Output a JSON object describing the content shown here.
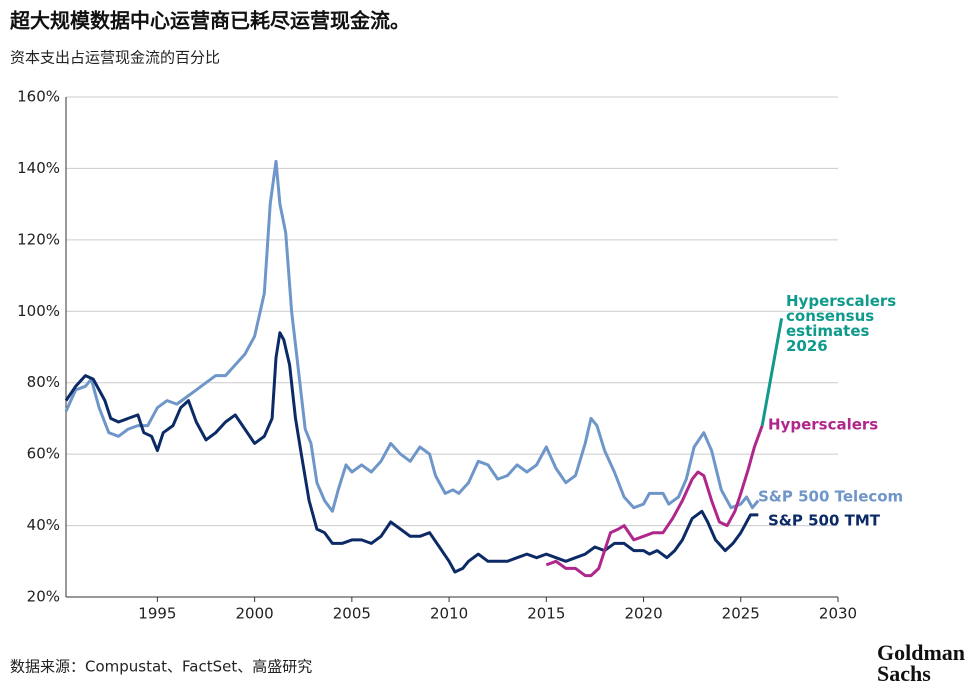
{
  "chart_data": {
    "type": "line",
    "title": "超大规模数据中心运营商已耗尽运营现金流。",
    "subtitle": "资本支出占运营现金流的百分比",
    "source": "数据来源：Compustat、FactSet、高盛研究",
    "logo": [
      "Goldman",
      "Sachs"
    ],
    "xlim": [
      1990.3,
      2030
    ],
    "xticks": [
      1995,
      2000,
      2005,
      2010,
      2015,
      2020,
      2025,
      2030
    ],
    "ylim": [
      20,
      160
    ],
    "yticks": [
      {
        "value": 20,
        "label": "20%"
      },
      {
        "value": 40,
        "label": "40%"
      },
      {
        "value": 60,
        "label": "60%"
      },
      {
        "value": 80,
        "label": "80%"
      },
      {
        "value": 100,
        "label": "100%"
      },
      {
        "value": 120,
        "label": "120%"
      },
      {
        "value": 140,
        "label": "140%"
      },
      {
        "value": 160,
        "label": "160%"
      }
    ],
    "grid": true,
    "series": [
      {
        "name": "S&P 500 Telecom",
        "color": "#6f96c8",
        "x": [
          1990.3,
          1990.8,
          1991.3,
          1991.6,
          1992,
          1992.5,
          1993,
          1993.5,
          1994,
          1994.5,
          1995,
          1995.5,
          1996,
          1996.5,
          1997,
          1997.5,
          1998,
          1998.5,
          1999,
          1999.5,
          2000,
          2000.5,
          2000.8,
          2001.1,
          2001.3,
          2001.6,
          2001.9,
          2002.2,
          2002.6,
          2002.9,
          2003.2,
          2003.6,
          2004,
          2004.3,
          2004.7,
          2005,
          2005.5,
          2006,
          2006.5,
          2007,
          2007.5,
          2008,
          2008.5,
          2009,
          2009.3,
          2009.8,
          2010.2,
          2010.5,
          2011,
          2011.5,
          2012,
          2012.5,
          2013,
          2013.5,
          2014,
          2014.5,
          2015,
          2015.5,
          2016,
          2016.5,
          2017,
          2017.3,
          2017.6,
          2018,
          2018.5,
          2019,
          2019.5,
          2020,
          2020.3,
          2021,
          2021.3,
          2021.8,
          2022.2,
          2022.6,
          2023.1,
          2023.5,
          2024,
          2024.5,
          2025,
          2025.3,
          2025.6,
          2025.9
        ],
        "values": [
          72,
          78,
          79,
          81,
          73,
          66,
          65,
          67,
          68,
          68,
          73,
          75,
          74,
          76,
          78,
          80,
          82,
          82,
          85,
          88,
          93,
          105,
          130,
          142,
          130,
          122,
          100,
          86,
          67,
          63,
          52,
          47,
          44,
          50,
          57,
          55,
          57,
          55,
          58,
          63,
          60,
          58,
          62,
          60,
          54,
          49,
          50,
          49,
          52,
          58,
          57,
          53,
          54,
          57,
          55,
          57,
          62,
          56,
          52,
          54,
          63,
          70,
          68,
          61,
          55,
          48,
          45,
          46,
          49,
          49,
          46,
          48,
          53,
          62,
          66,
          61,
          50,
          45,
          46,
          48,
          45,
          47
        ]
      },
      {
        "name": "S&P 500 TMT",
        "color": "#0c2a66",
        "x": [
          1990.3,
          1990.8,
          1991.3,
          1991.7,
          1992,
          1992.3,
          1992.6,
          1993,
          1993.5,
          1994,
          1994.3,
          1994.7,
          1995,
          1995.3,
          1995.8,
          1996.2,
          1996.6,
          1997,
          1997.5,
          1998,
          1998.5,
          1999,
          1999.5,
          2000,
          2000.5,
          2000.9,
          2001.1,
          2001.3,
          2001.5,
          2001.8,
          2002.1,
          2002.4,
          2002.8,
          2003.2,
          2003.6,
          2004,
          2004.5,
          2005,
          2005.5,
          2006,
          2006.5,
          2007,
          2007.5,
          2008,
          2008.5,
          2009,
          2009.5,
          2010,
          2010.3,
          2010.7,
          2011,
          2011.5,
          2012,
          2013,
          2013.5,
          2014,
          2014.5,
          2015,
          2015.5,
          2016,
          2016.5,
          2017,
          2017.5,
          2018,
          2018.5,
          2019,
          2019.5,
          2020,
          2020.3,
          2020.7,
          2021.2,
          2021.6,
          2022,
          2022.5,
          2023,
          2023.3,
          2023.7,
          2024.2,
          2024.6,
          2025,
          2025.5,
          2025.9
        ],
        "values": [
          75,
          79,
          82,
          81,
          78,
          75,
          70,
          69,
          70,
          71,
          66,
          65,
          61,
          66,
          68,
          73,
          75,
          69,
          64,
          66,
          69,
          71,
          67,
          63,
          65,
          70,
          87,
          94,
          92,
          85,
          70,
          60,
          47,
          39,
          38,
          35,
          35,
          36,
          36,
          35,
          37,
          41,
          39,
          37,
          37,
          38,
          34,
          30,
          27,
          28,
          30,
          32,
          30,
          30,
          31,
          32,
          31,
          32,
          31,
          30,
          31,
          32,
          34,
          33,
          35,
          35,
          33,
          33,
          32,
          33,
          31,
          33,
          36,
          42,
          44,
          41,
          36,
          33,
          35,
          38,
          43,
          43
        ]
      },
      {
        "name": "Hyperscalers",
        "color": "#b0278c",
        "x": [
          2015,
          2015.5,
          2016,
          2016.5,
          2017,
          2017.3,
          2017.7,
          2018,
          2018.3,
          2018.7,
          2019,
          2019.5,
          2020,
          2020.5,
          2021,
          2021.5,
          2022,
          2022.5,
          2022.8,
          2023.1,
          2023.5,
          2023.9,
          2024.3,
          2024.7,
          2025,
          2025.4,
          2025.7,
          2026.1
        ],
        "values": [
          29,
          30,
          28,
          28,
          26,
          26,
          28,
          33,
          38,
          39,
          40,
          36,
          37,
          38,
          38,
          42,
          47,
          53,
          55,
          54,
          47,
          41,
          40,
          44,
          49,
          56,
          62,
          68
        ]
      },
      {
        "name": "Hyperscalers consensus estimates 2026",
        "color": "#0f9a8c",
        "x": [
          2026.1,
          2027.1
        ],
        "values": [
          68,
          98
        ]
      }
    ]
  }
}
